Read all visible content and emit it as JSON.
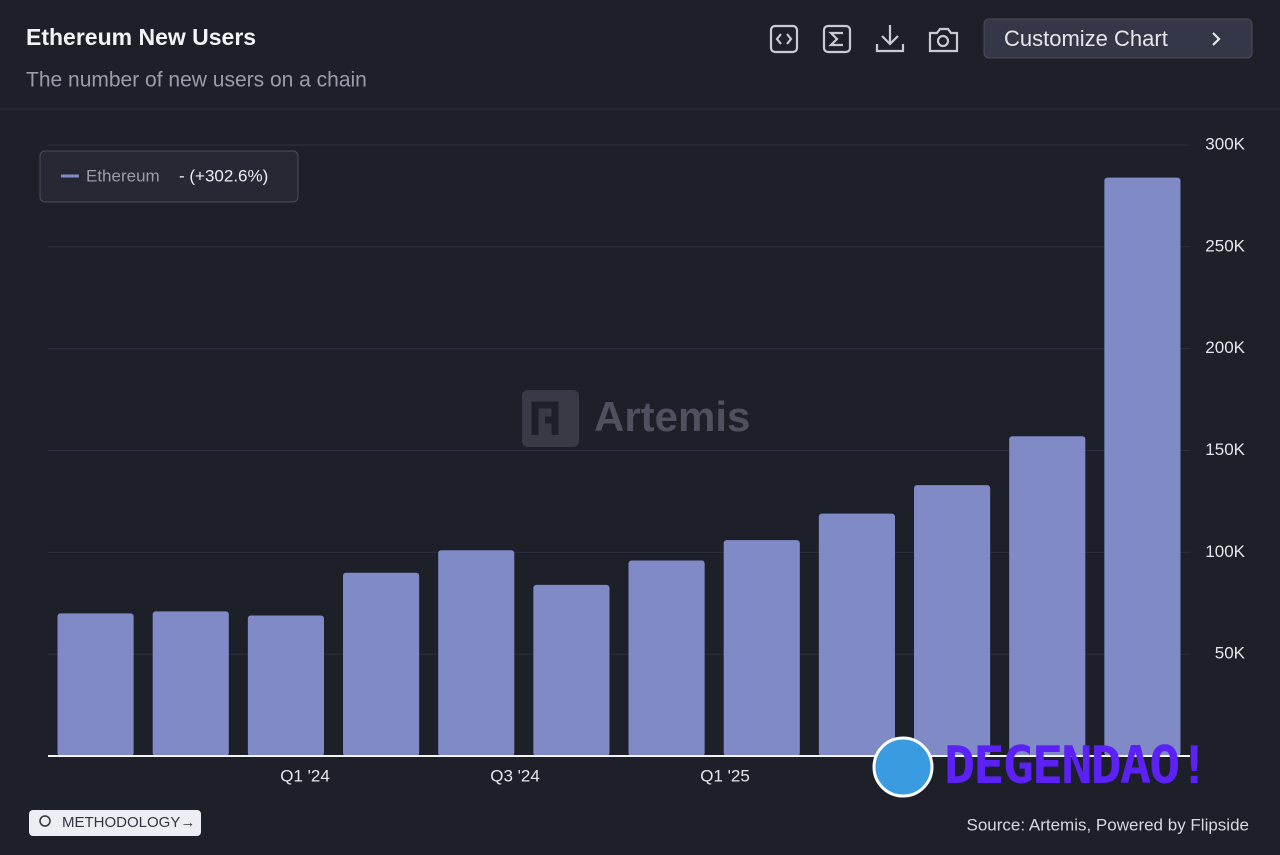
{
  "header": {
    "title": "Ethereum New Users",
    "subtitle": "The number of new users on a chain",
    "button": "Customize Chart"
  },
  "chart_data": {
    "type": "bar",
    "categories": [
      null,
      null,
      null,
      null,
      null,
      null,
      null,
      null,
      null,
      null,
      null,
      null
    ],
    "series": [
      {
        "name": "Ethereum",
        "color": "#7f8ac7",
        "values": [
          70000,
          71000,
          69000,
          90000,
          101000,
          84000,
          96000,
          106000,
          119000,
          133000,
          157000,
          284000
        ]
      }
    ],
    "legend_change": "- (+302.6%)",
    "x_axis_labels": [
      "Q1 '24",
      "Q3 '24",
      "Q1 '25"
    ],
    "ylim": [
      0,
      300000
    ],
    "yticks": [
      {
        "value": 50000,
        "label": "50K"
      },
      {
        "value": 100000,
        "label": "100K"
      },
      {
        "value": 150000,
        "label": "150K"
      },
      {
        "value": 200000,
        "label": "200K"
      },
      {
        "value": 250000,
        "label": "250K"
      },
      {
        "value": 300000,
        "label": "300K"
      }
    ],
    "grid": true,
    "legend_position": "top-left",
    "watermark": "Artemis"
  },
  "footer": {
    "methodology": "METHODOLOGY→",
    "source": "Source: Artemis, Powered by Flipside"
  },
  "overlay": "DEGENDAO!"
}
